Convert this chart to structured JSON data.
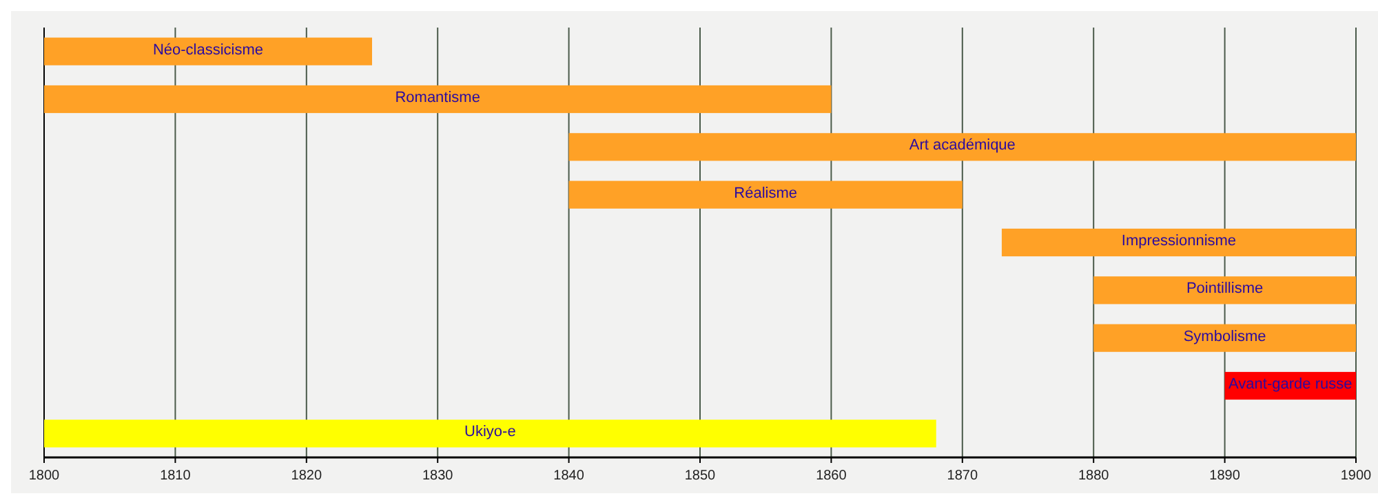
{
  "chart_data": {
    "type": "bar",
    "orientation": "horizontal",
    "categories": [
      "Néo-classicisme",
      "Romantisme",
      "Art académique",
      "Réalisme",
      "Impressionnisme",
      "Pointillisme",
      "Symbolisme",
      "Avant-garde russe",
      "Ukiyo-e"
    ],
    "base": [
      1800,
      1800,
      1840,
      1840,
      1873,
      1880,
      1880,
      1890,
      1800
    ],
    "values": [
      25,
      60,
      60,
      30,
      27,
      20,
      20,
      10,
      68
    ],
    "colors": [
      "#ffa126",
      "#ffa126",
      "#ffa126",
      "#ffa126",
      "#ffa126",
      "#ffa126",
      "#ffa126",
      "#ff0000",
      "#ffff00"
    ],
    "xlim": [
      1800,
      1900
    ],
    "xticks": [
      1800,
      1810,
      1820,
      1830,
      1840,
      1850,
      1860,
      1870,
      1880,
      1890,
      1900
    ],
    "grid": "x"
  }
}
